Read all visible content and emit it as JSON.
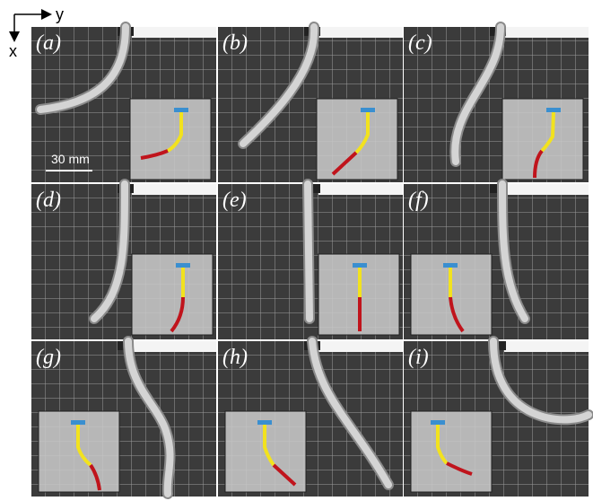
{
  "axes": {
    "y": "y",
    "x": "x"
  },
  "scale_bar": "30 mm",
  "panels": [
    {
      "label": "(a)"
    },
    {
      "label": "(b)"
    },
    {
      "label": "(c)"
    },
    {
      "label": "(d)"
    },
    {
      "label": "(e)"
    },
    {
      "label": "(f)"
    },
    {
      "label": "(g)"
    },
    {
      "label": "(h)"
    },
    {
      "label": "(i)"
    }
  ]
}
